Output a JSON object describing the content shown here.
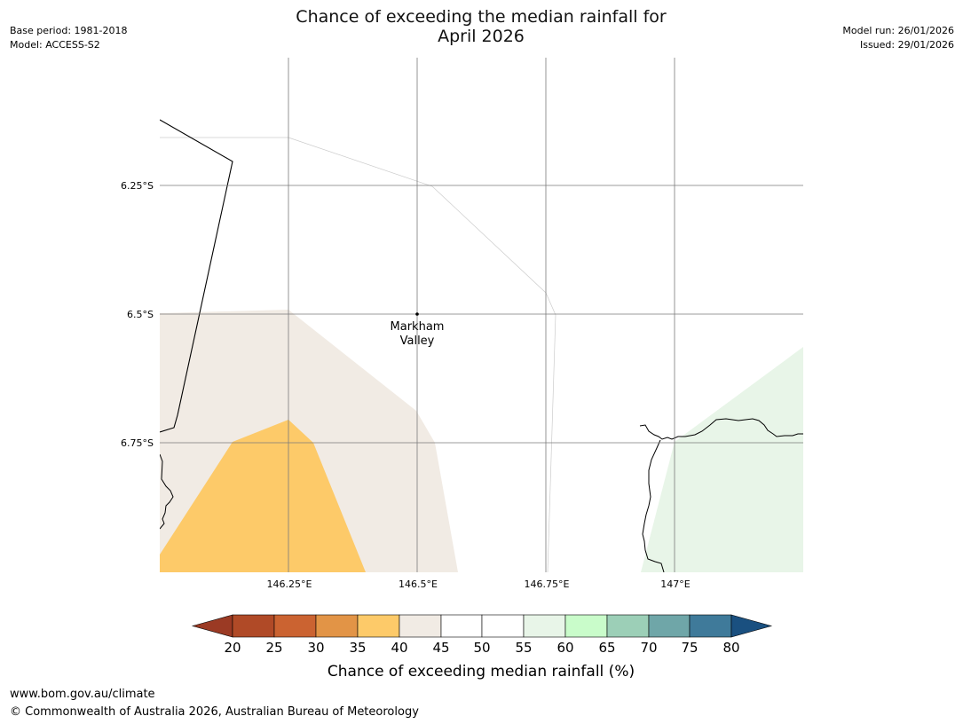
{
  "header": {
    "title_line1": "Chance of exceeding the median rainfall for",
    "title_line2": "April 2026",
    "base_period": "Base period: 1981-2018",
    "model": "Model: ACCESS-S2",
    "model_run": "Model run: 26/01/2026",
    "issued": "Issued: 29/01/2026"
  },
  "map": {
    "place": {
      "name_line1": "Markham",
      "name_line2": "Valley",
      "lon": 146.5,
      "lat": -6.5
    },
    "lon_ticks": [
      "146.25°E",
      "146.5°E",
      "146.75°E",
      "147°E"
    ],
    "lat_ticks": [
      "6.25°S",
      "6.5°S",
      "6.75°S"
    ]
  },
  "colorbar": {
    "title": "Chance of exceeding median rainfall (%)",
    "ticks": [
      "20",
      "25",
      "30",
      "35",
      "40",
      "45",
      "50",
      "55",
      "60",
      "65",
      "70",
      "75",
      "80"
    ],
    "colors": {
      "below_20": "#9b3a24",
      "c20_25": "#b04a27",
      "c25_30": "#cb6331",
      "c30_35": "#e29446",
      "c35_40": "#fdca69",
      "c40_45": "#f1ebe4",
      "c45_50": "#ffffff",
      "c50_55": "#ffffff",
      "c55_60": "#e8f5e8",
      "c60_65": "#c9fcca",
      "c65_70": "#9ccfb7",
      "c70_75": "#6fa6a8",
      "c75_80": "#3f7a9a",
      "above_80": "#1a5080"
    }
  },
  "footer": {
    "url": "www.bom.gov.au/climate",
    "copyright": "© Commonwealth of Australia 2026, Australian Bureau of Meteorology"
  }
}
